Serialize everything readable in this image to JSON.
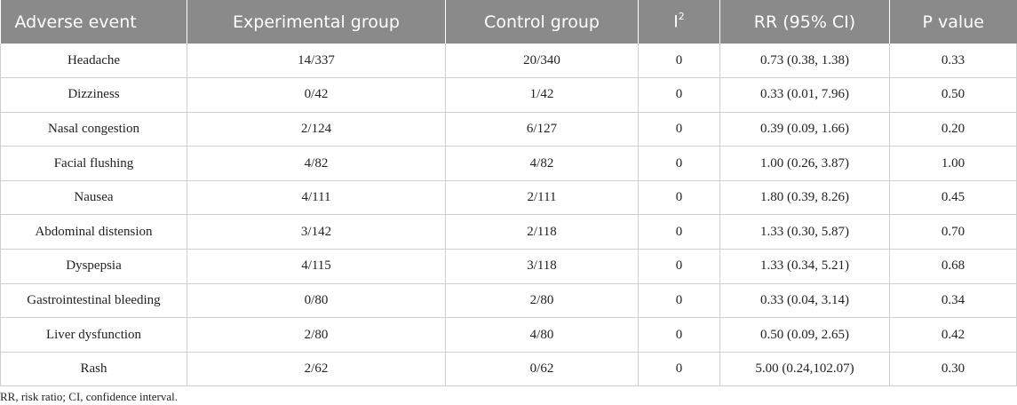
{
  "table": {
    "headers": {
      "adverse_event": "Adverse event",
      "experimental": "Experimental group",
      "control": "Control group",
      "i2_base": "I",
      "i2_sup": "2",
      "rr": "RR (95% CI)",
      "p": "P value"
    },
    "rows": [
      [
        "Headache",
        "14/337",
        "20/340",
        "0",
        "0.73 (0.38, 1.38)",
        "0.33"
      ],
      [
        "Dizziness",
        "0/42",
        "1/42",
        "0",
        "0.33 (0.01, 7.96)",
        "0.50"
      ],
      [
        "Nasal congestion",
        "2/124",
        "6/127",
        "0",
        "0.39 (0.09, 1.66)",
        "0.20"
      ],
      [
        "Facial flushing",
        "4/82",
        "4/82",
        "0",
        "1.00 (0.26, 3.87)",
        "1.00"
      ],
      [
        "Nausea",
        "4/111",
        "2/111",
        "0",
        "1.80 (0.39, 8.26)",
        "0.45"
      ],
      [
        "Abdominal distension",
        "3/142",
        "2/118",
        "0",
        "1.33 (0.30, 5.87)",
        "0.70"
      ],
      [
        "Dyspepsia",
        "4/115",
        "3/118",
        "0",
        "1.33 (0.34, 5.21)",
        "0.68"
      ],
      [
        "Gastrointestinal bleeding",
        "0/80",
        "2/80",
        "0",
        "0.33 (0.04, 3.14)",
        "0.34"
      ],
      [
        "Liver dysfunction",
        "2/80",
        "4/80",
        "0",
        "0.50 (0.09, 2.65)",
        "0.42"
      ],
      [
        "Rash",
        "2/62",
        "0/62",
        "0",
        "5.00 (0.24,102.07)",
        "0.30"
      ]
    ],
    "footnote": "RR, risk ratio; CI, confidence interval."
  }
}
